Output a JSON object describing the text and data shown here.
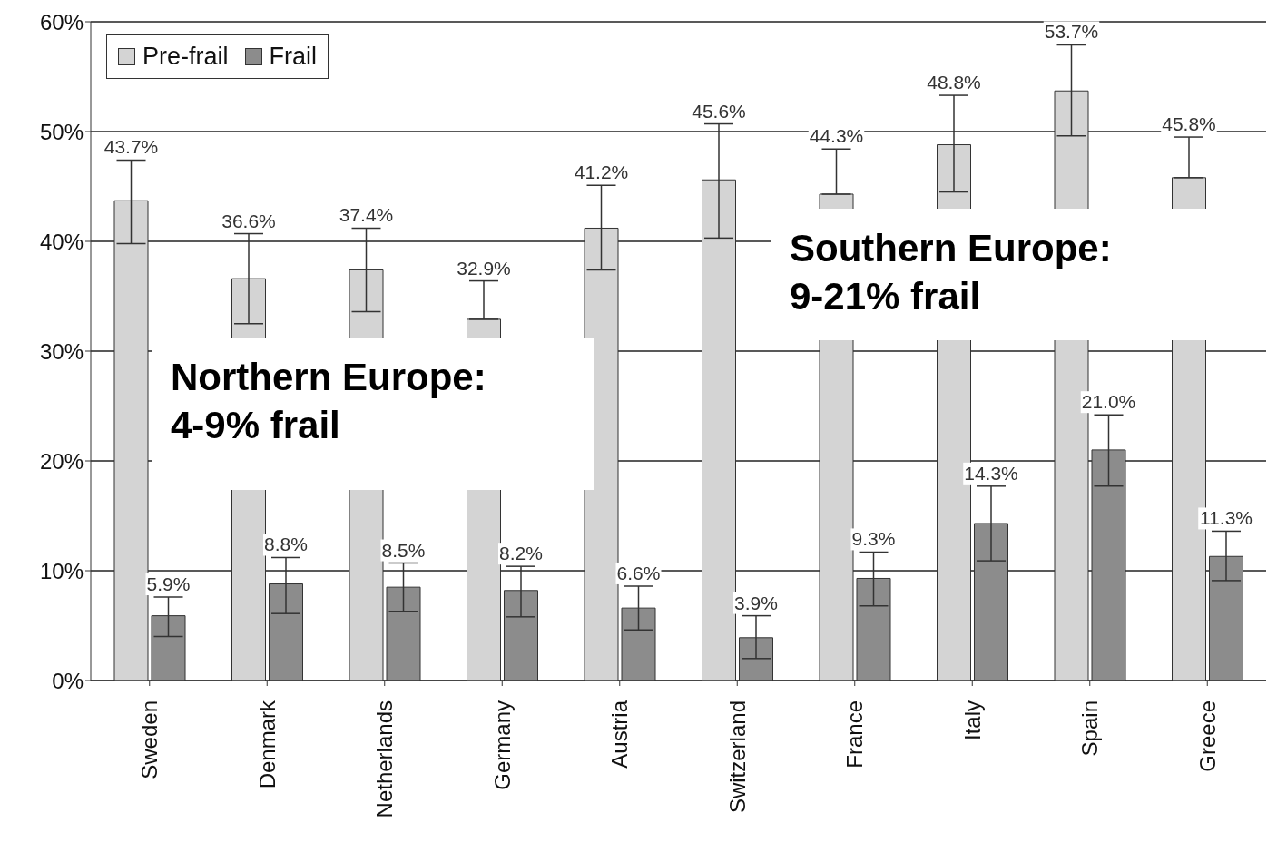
{
  "chart_data": {
    "type": "bar",
    "categories": [
      "Sweden",
      "Denmark",
      "Netherlands",
      "Germany",
      "Austria",
      "Switzerland",
      "France",
      "Italy",
      "Spain",
      "Greece"
    ],
    "series": [
      {
        "name": "Pre-frail",
        "color": "#d4d4d4",
        "values": [
          43.7,
          36.6,
          37.4,
          32.9,
          41.2,
          45.6,
          44.3,
          48.8,
          53.7,
          45.8
        ],
        "errors": [
          [
            39.8,
            47.4
          ],
          [
            32.5,
            40.7
          ],
          [
            33.6,
            41.2
          ],
          [
            32.9,
            36.4
          ],
          [
            37.4,
            45.1
          ],
          [
            40.3,
            50.7
          ],
          [
            44.3,
            48.4
          ],
          [
            44.5,
            53.3
          ],
          [
            49.6,
            57.9
          ],
          [
            45.8,
            49.5
          ]
        ],
        "value_labels": [
          "43.7%",
          "36.6%",
          "37.4%",
          "32.9%",
          "41.2%",
          "45.6%",
          "44.3%",
          "48.8%",
          "53.7%",
          "45.8%"
        ]
      },
      {
        "name": "Frail",
        "color": "#8c8c8c",
        "values": [
          5.9,
          8.8,
          8.5,
          8.2,
          6.6,
          3.9,
          9.3,
          14.3,
          21.0,
          11.3
        ],
        "errors": [
          [
            4.0,
            7.6
          ],
          [
            6.1,
            11.2
          ],
          [
            6.3,
            10.7
          ],
          [
            5.8,
            10.4
          ],
          [
            4.6,
            8.6
          ],
          [
            2.0,
            5.9
          ],
          [
            6.8,
            11.7
          ],
          [
            10.9,
            17.7
          ],
          [
            17.7,
            24.2
          ],
          [
            9.1,
            13.6
          ]
        ],
        "value_labels": [
          "5.9%",
          "8.8%",
          "8.5%",
          "8.2%",
          "6.6%",
          "3.9%",
          "9.3%",
          "14.3%",
          "21.0%",
          "11.3%"
        ]
      }
    ],
    "ylim": [
      0,
      60
    ],
    "yticks": [
      {
        "value": 0,
        "label": "0%"
      },
      {
        "value": 10,
        "label": "10%"
      },
      {
        "value": 20,
        "label": "20%"
      },
      {
        "value": 30,
        "label": "30%"
      },
      {
        "value": 40,
        "label": "40%"
      },
      {
        "value": 50,
        "label": "50%"
      },
      {
        "value": 60,
        "label": "60%"
      }
    ],
    "grid": "y",
    "legend": "top left",
    "annotations": [
      "Northern Europe:\n4-9% frail",
      "Southern Europe:\n9-21% frail"
    ]
  }
}
